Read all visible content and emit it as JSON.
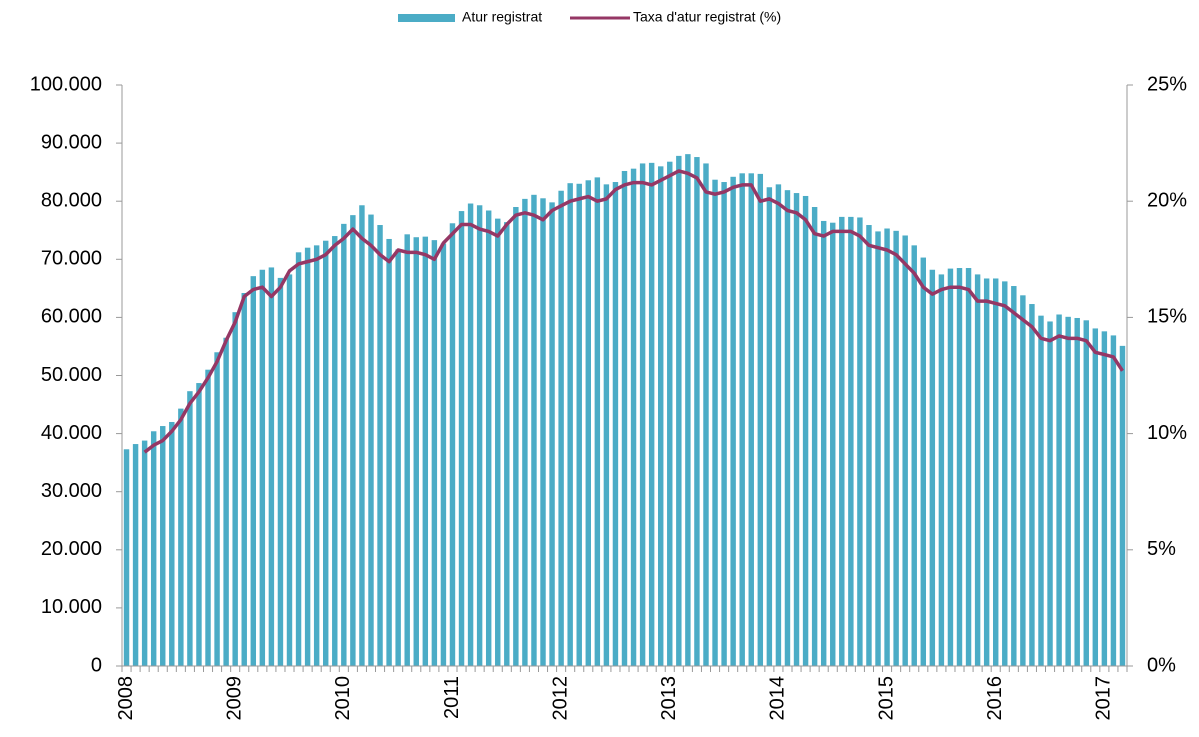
{
  "chart_data": {
    "type": "bar",
    "categories": [
      "2008",
      null,
      null,
      null,
      null,
      null,
      null,
      null,
      null,
      null,
      null,
      null,
      "2009",
      null,
      null,
      null,
      null,
      null,
      null,
      null,
      null,
      null,
      null,
      null,
      "2010",
      null,
      null,
      null,
      null,
      null,
      null,
      null,
      null,
      null,
      null,
      null,
      "2011",
      null,
      null,
      null,
      null,
      null,
      null,
      null,
      null,
      null,
      null,
      null,
      "2012",
      null,
      null,
      null,
      null,
      null,
      null,
      null,
      null,
      null,
      null,
      null,
      "2013",
      null,
      null,
      null,
      null,
      null,
      null,
      null,
      null,
      null,
      null,
      null,
      "2014",
      null,
      null,
      null,
      null,
      null,
      null,
      null,
      null,
      null,
      null,
      null,
      "2015",
      null,
      null,
      null,
      null,
      null,
      null,
      null,
      null,
      null,
      null,
      null,
      "2016",
      null,
      null,
      null,
      null,
      null,
      null,
      null,
      null,
      null,
      null,
      null,
      "2017",
      null,
      null
    ],
    "series": [
      {
        "name": "Atur registrat",
        "type": "bar",
        "color": "#4bacc6",
        "values": [
          37300,
          38200,
          38800,
          40400,
          41300,
          42000,
          44300,
          47300,
          48700,
          51000,
          54000,
          56500,
          60900,
          64200,
          67100,
          68200,
          68600,
          66800,
          67400,
          71200,
          72000,
          72400,
          73200,
          74000,
          76100,
          77600,
          79300,
          77700,
          75900,
          73500,
          71700,
          74300,
          73800,
          73900,
          73300,
          72700,
          76200,
          78300,
          79600,
          79300,
          78400,
          77000,
          76400,
          79000,
          80400,
          81100,
          80500,
          79800,
          81800,
          83100,
          83000,
          83600,
          84100,
          82900,
          83300,
          85200,
          85600,
          86500,
          86600,
          86000,
          86800,
          87800,
          88100,
          87600,
          86500,
          83700,
          83300,
          84200,
          84800,
          84800,
          84700,
          82400,
          82900,
          81900,
          81400,
          80900,
          79000,
          76600,
          76300,
          77300,
          77300,
          77200,
          75900,
          74800,
          75300,
          74900,
          74100,
          72400,
          70300,
          68200,
          67400,
          68400,
          68500,
          68500,
          67400,
          66700,
          66700,
          66200,
          65400,
          63800,
          62300,
          60300,
          59300,
          60500,
          60100,
          59900,
          59500,
          58100,
          57600,
          56900,
          55100
        ]
      },
      {
        "name": "Taxa d'atur registrat (%)",
        "type": "line",
        "axis": "y2",
        "color": "#953765",
        "values": [
          null,
          null,
          9.2,
          9.5,
          9.7,
          10.1,
          10.6,
          11.3,
          11.8,
          12.4,
          13.1,
          14.0,
          14.8,
          15.9,
          16.2,
          16.3,
          15.9,
          16.3,
          17.0,
          17.3,
          17.4,
          17.5,
          17.7,
          18.1,
          18.4,
          18.8,
          18.4,
          18.1,
          17.7,
          17.4,
          17.9,
          17.8,
          17.8,
          17.7,
          17.5,
          18.2,
          18.6,
          19.0,
          19.0,
          18.8,
          18.7,
          18.5,
          19.0,
          19.4,
          19.5,
          19.4,
          19.2,
          19.6,
          19.8,
          20.0,
          20.1,
          20.2,
          20.0,
          20.1,
          20.5,
          20.7,
          20.8,
          20.8,
          20.7,
          20.9,
          21.1,
          21.3,
          21.2,
          21.0,
          20.4,
          20.3,
          20.4,
          20.6,
          20.7,
          20.7,
          20.0,
          20.1,
          19.9,
          19.6,
          19.5,
          19.2,
          18.6,
          18.5,
          18.7,
          18.7,
          18.7,
          18.5,
          18.1,
          18.0,
          17.9,
          17.7,
          17.3,
          16.9,
          16.3,
          16.0,
          16.2,
          16.3,
          16.3,
          16.2,
          15.7,
          15.7,
          15.6,
          15.5,
          15.2,
          14.9,
          14.6,
          14.1,
          14.0,
          14.2,
          14.1,
          14.1,
          14.0,
          13.5,
          13.4,
          13.3,
          12.7
        ]
      }
    ],
    "ylim": [
      0,
      100000
    ],
    "yticks": [
      0,
      {
        "value": 10000,
        "label": "10.000"
      },
      {
        "value": 20000,
        "label": "20.000"
      },
      {
        "value": 30000,
        "label": "30.000"
      },
      {
        "value": 40000,
        "label": "40.000"
      },
      {
        "value": 50000,
        "label": "50.000"
      },
      {
        "value": 60000,
        "label": "60.000"
      },
      {
        "value": 70000,
        "label": "70.000"
      },
      {
        "value": 80000,
        "label": "80.000"
      },
      {
        "value": 90000,
        "label": "90.000"
      },
      {
        "value": 100000,
        "label": "100.000"
      }
    ],
    "y2lim": [
      0,
      25
    ],
    "y2ticks": [
      {
        "value": 0,
        "label": "0%"
      },
      {
        "value": 5,
        "label": "5%"
      },
      {
        "value": 10,
        "label": "10%"
      },
      {
        "value": 15,
        "label": "15%"
      },
      {
        "value": 20,
        "label": "20%"
      },
      {
        "value": 25,
        "label": "25%"
      }
    ],
    "legend": "top",
    "grid": false
  }
}
